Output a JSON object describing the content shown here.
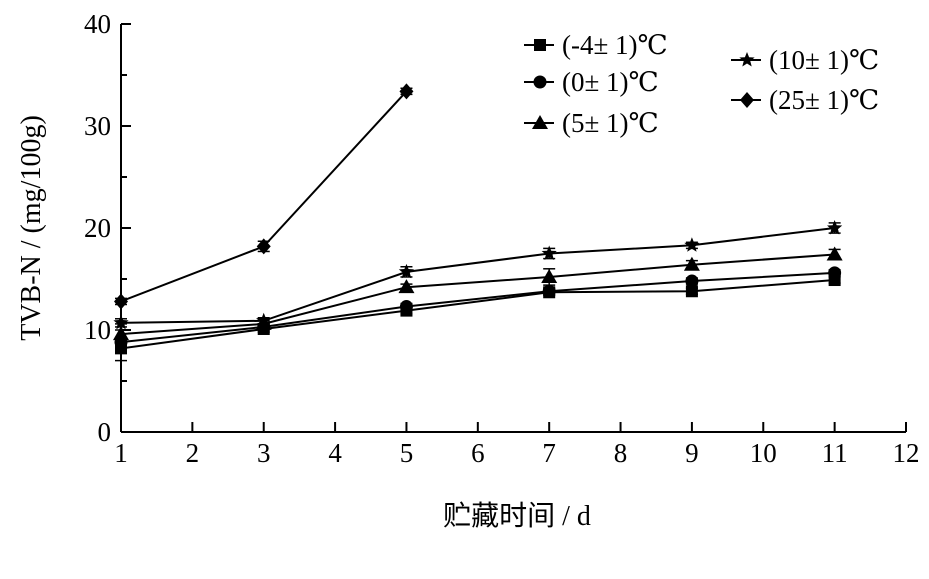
{
  "chart_data": {
    "type": "line",
    "xlabel": "贮藏时间 / d",
    "ylabel": "TVB-N / (mg/100g)",
    "xlim": [
      1,
      12
    ],
    "ylim": [
      0,
      40
    ],
    "xticks": [
      "1",
      "2",
      "3",
      "4",
      "5",
      "6",
      "7",
      "8",
      "9",
      "10",
      "11",
      "12"
    ],
    "yticks": [
      "0",
      "10",
      "20",
      "30",
      "40"
    ],
    "grid": false,
    "legend_position": "top-right",
    "series": [
      {
        "name": "(-4± 1)℃",
        "marker": "square",
        "x": [
          1,
          3,
          5,
          7,
          9,
          11
        ],
        "y": [
          8.2,
          10.1,
          11.9,
          13.7,
          13.8,
          14.9
        ],
        "err": [
          0.4,
          0.3,
          0.3,
          0.3,
          0.3,
          0.3
        ]
      },
      {
        "name": "(0± 1)℃",
        "marker": "circle",
        "x": [
          1,
          3,
          5,
          7,
          9,
          11
        ],
        "y": [
          8.8,
          10.3,
          12.3,
          13.8,
          14.8,
          15.6
        ],
        "err": [
          1.8,
          0.3,
          0.3,
          0.3,
          0.3,
          0.3
        ]
      },
      {
        "name": "(5± 1)℃",
        "marker": "triangle",
        "x": [
          1,
          3,
          5,
          7,
          9,
          11
        ],
        "y": [
          9.6,
          10.6,
          14.2,
          15.2,
          16.4,
          17.4
        ],
        "err": [
          0.4,
          0.3,
          0.3,
          0.8,
          0.4,
          0.5
        ]
      },
      {
        "name": "(10± 1)℃",
        "marker": "star",
        "x": [
          1,
          3,
          5,
          7,
          9,
          11
        ],
        "y": [
          10.7,
          10.9,
          15.7,
          17.5,
          18.3,
          20.0
        ],
        "err": [
          0.4,
          0.3,
          0.5,
          0.5,
          0.3,
          0.5
        ]
      },
      {
        "name": "(25± 1)℃",
        "marker": "diamond",
        "x": [
          1,
          3,
          5
        ],
        "y": [
          12.8,
          18.2,
          33.4
        ],
        "err": [
          0.3,
          0.5,
          0.3
        ]
      }
    ]
  }
}
